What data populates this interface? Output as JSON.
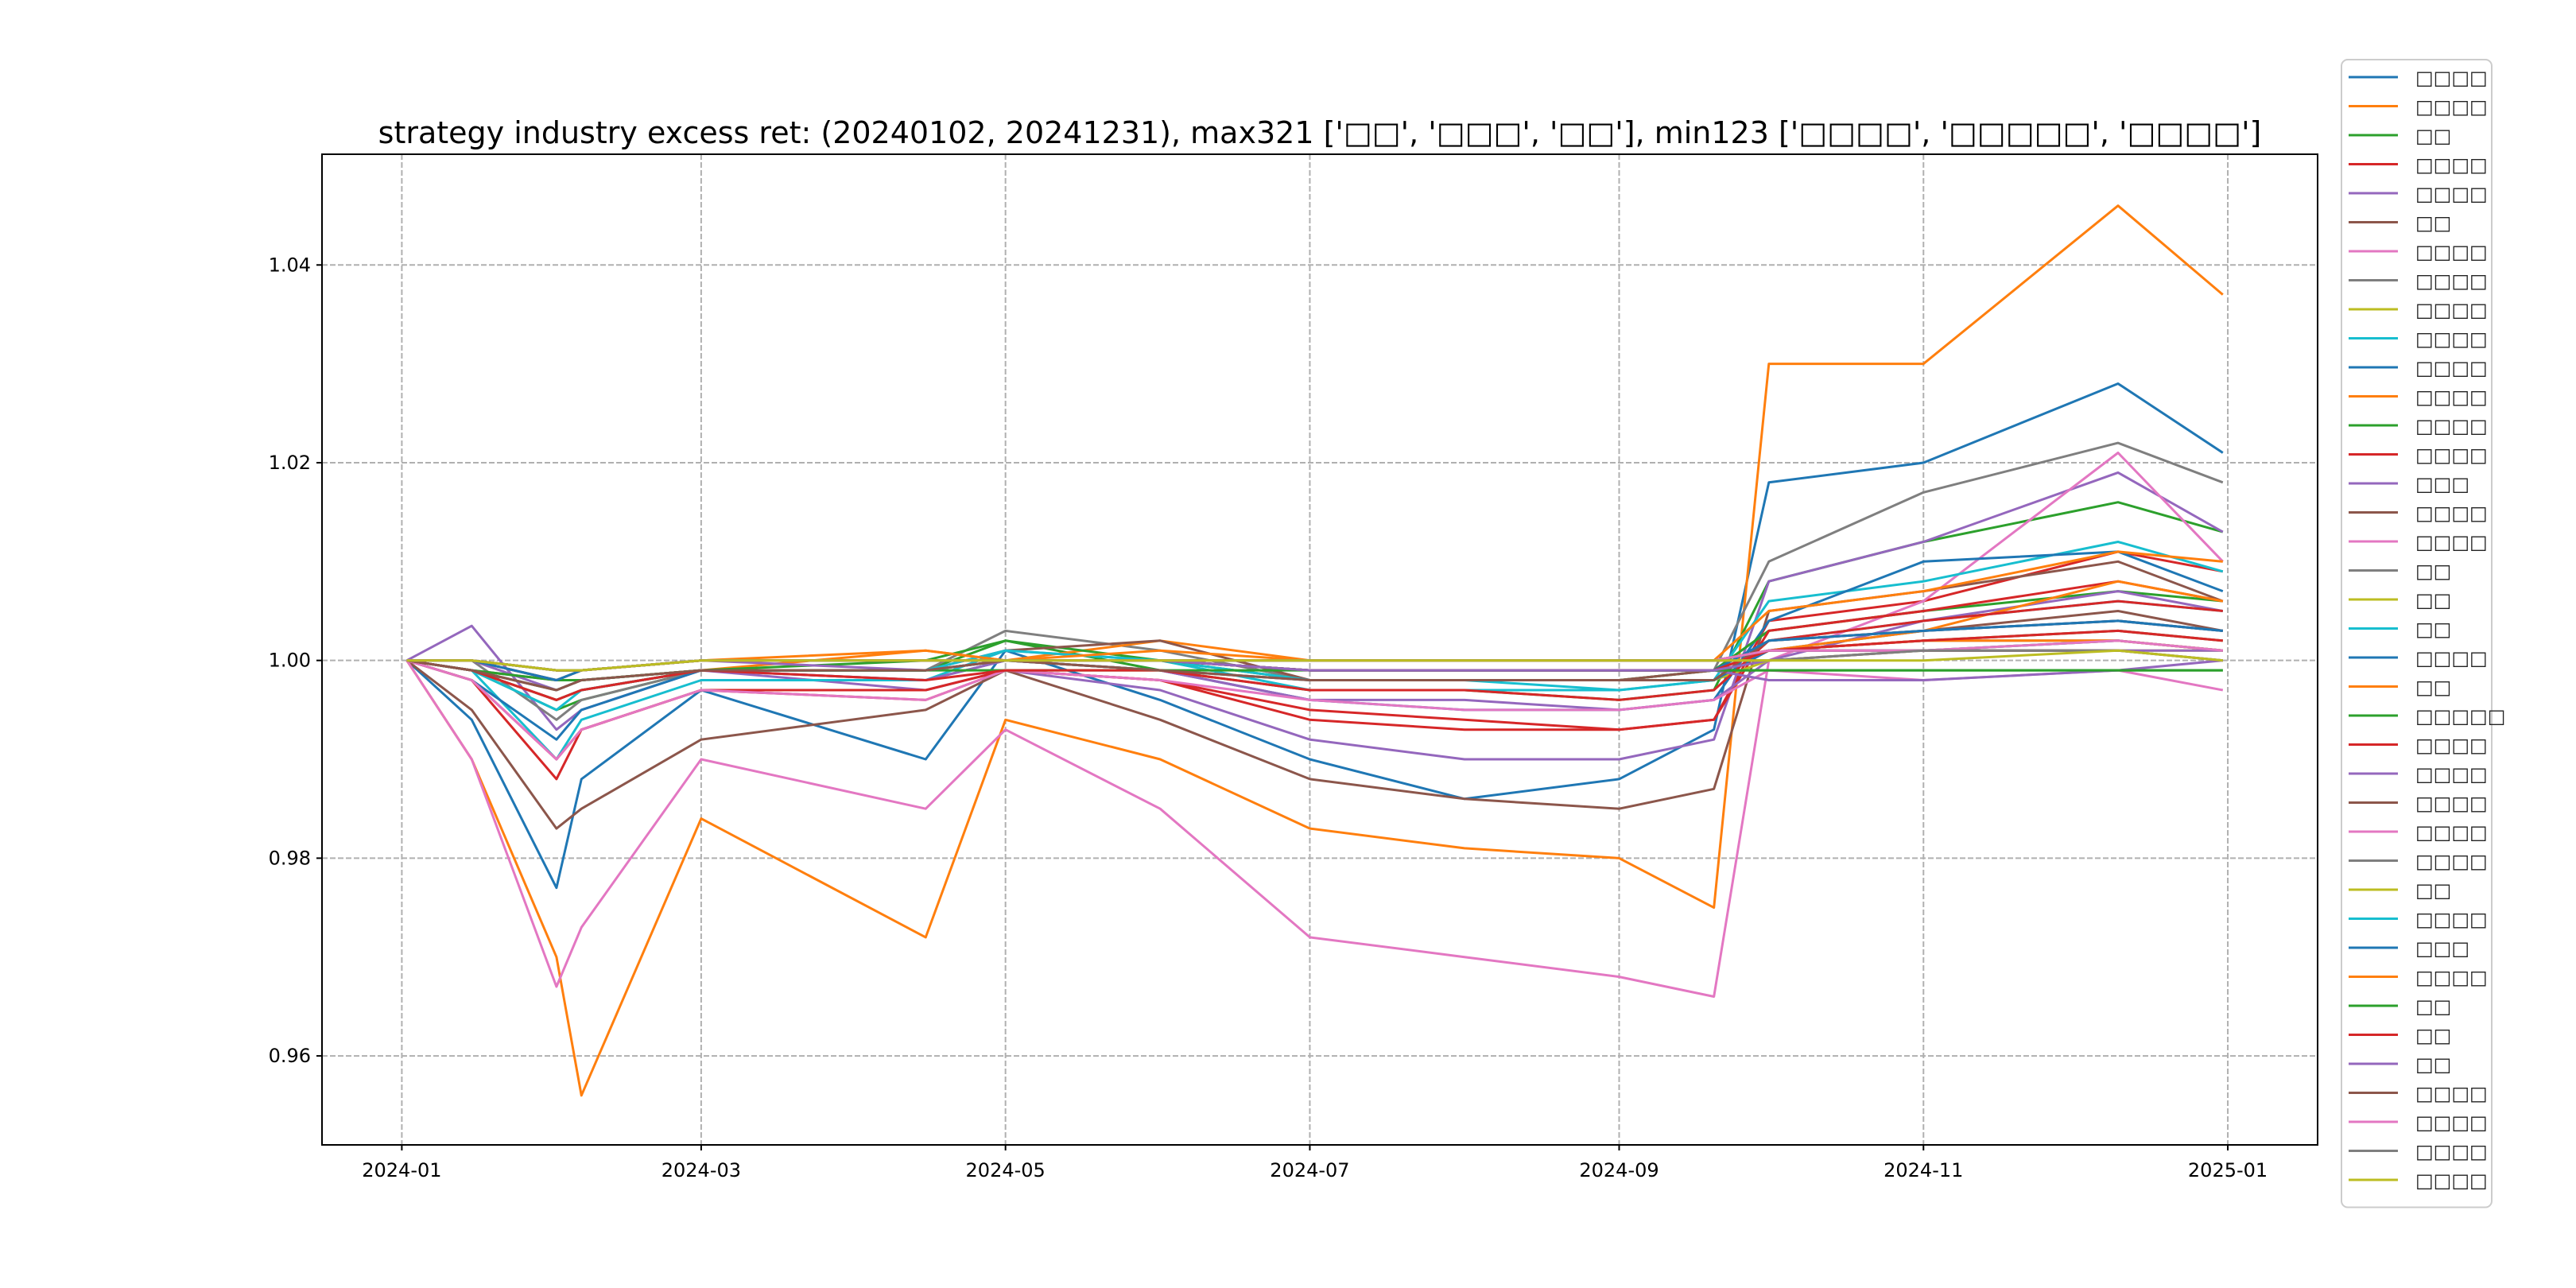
{
  "chart_data": {
    "type": "line",
    "title": "strategy industry excess ret: (20240102, 20241231), max321 ['□□', '□□□', '□□'], min123 ['□□□□', '□□□□□', '□□□□']",
    "xlabel": "",
    "ylabel": "",
    "xlim": [
      "2023-12-16",
      "2025-01-19"
    ],
    "ylim": [
      0.951,
      1.0512
    ],
    "grid": true,
    "legend_position": "upper-left",
    "x_ticks": [
      "2024-01",
      "2024-03",
      "2024-05",
      "2024-07",
      "2024-09",
      "2024-11",
      "2025-01"
    ],
    "y_ticks": [
      "0.96",
      "0.98",
      "1.00",
      "1.02",
      "1.04"
    ],
    "y_tick_values": [
      0.96,
      0.98,
      1.0,
      1.02,
      1.04
    ],
    "colors": [
      "#1f77b4",
      "#ff7f0e",
      "#2ca02c",
      "#d62728",
      "#9467bd",
      "#8c564b",
      "#e377c2",
      "#7f7f7f",
      "#bcbd22",
      "#17becf"
    ],
    "x": [
      "2024-01-02",
      "2024-01-15",
      "2024-02-01",
      "2024-02-06",
      "2024-03-01",
      "2024-04-15",
      "2024-05-01",
      "2024-06-01",
      "2024-07-01",
      "2024-08-01",
      "2024-09-01",
      "2024-09-20",
      "2024-10-01",
      "2024-11-01",
      "2024-12-10",
      "2024-12-31"
    ],
    "series": [
      {
        "name": "□□□□",
        "values": [
          1,
          0.994,
          0.977,
          0.988,
          0.997,
          0.99,
          1.001,
          0.996,
          0.99,
          0.986,
          0.988,
          0.993,
          1.018,
          1.02,
          1.028,
          1.021
        ]
      },
      {
        "name": "□□□□",
        "values": [
          1,
          0.99,
          0.97,
          0.956,
          0.984,
          0.972,
          0.994,
          0.99,
          0.983,
          0.981,
          0.98,
          0.975,
          1.03,
          1.03,
          1.046,
          1.037
        ]
      },
      {
        "name": "□□",
        "values": [
          1,
          0.999,
          0.995,
          0.996,
          0.999,
          0.999,
          1.002,
          0.999,
          0.997,
          0.997,
          0.996,
          0.997,
          1.008,
          1.012,
          1.016,
          1.013
        ]
      },
      {
        "name": "□□□□",
        "values": [
          1,
          0.998,
          0.988,
          0.993,
          0.997,
          0.996,
          0.999,
          0.998,
          0.994,
          0.993,
          0.993,
          0.994,
          1.004,
          1.006,
          1.011,
          1.009
        ]
      },
      {
        "name": "□□□□",
        "values": [
          1,
          1.0035,
          0.993,
          0.995,
          0.999,
          0.997,
          0.999,
          0.997,
          0.992,
          0.99,
          0.99,
          0.992,
          1.008,
          1.012,
          1.019,
          1.013
        ]
      },
      {
        "name": "□□",
        "values": [
          1,
          0.995,
          0.983,
          0.985,
          0.992,
          0.995,
          0.999,
          0.994,
          0.988,
          0.986,
          0.985,
          0.987,
          1.005,
          1.007,
          1.01,
          1.006
        ]
      },
      {
        "name": "□□□□",
        "values": [
          1,
          0.99,
          0.967,
          0.973,
          0.99,
          0.985,
          0.993,
          0.985,
          0.972,
          0.97,
          0.968,
          0.966,
          1.0,
          1.006,
          1.021,
          1.01
        ]
      },
      {
        "name": "□□□□",
        "values": [
          1,
          1.0,
          0.994,
          0.996,
          0.999,
          0.999,
          1.003,
          1.001,
          0.998,
          0.998,
          0.998,
          0.999,
          1.01,
          1.017,
          1.022,
          1.018
        ]
      },
      {
        "name": "□□□□",
        "values": [
          1,
          1,
          0.998,
          0.999,
          1,
          1,
          1,
          1,
          0.999,
          0.999,
          0.999,
          0.999,
          1.001,
          1.002,
          1.003,
          1.002
        ]
      },
      {
        "name": "□□□□",
        "values": [
          1,
          0.999,
          0.99,
          0.994,
          0.998,
          0.998,
          1.001,
          1.0,
          0.997,
          0.997,
          0.997,
          0.998,
          1.006,
          1.008,
          1.012,
          1.009
        ]
      },
      {
        "name": "□□□□",
        "values": [
          1,
          0.998,
          0.992,
          0.995,
          0.999,
          0.998,
          1.0,
          0.999,
          0.996,
          0.995,
          0.995,
          0.996,
          1.004,
          1.01,
          1.011,
          1.007
        ]
      },
      {
        "name": "□□□□",
        "values": [
          1,
          0.999,
          0.997,
          0.998,
          0.999,
          1.001,
          1.0,
          1.002,
          1.0,
          1.0,
          1.0,
          1.0,
          1.005,
          1.007,
          1.011,
          1.01
        ]
      },
      {
        "name": "□□□□",
        "values": [
          1,
          0.999,
          0.996,
          0.997,
          0.999,
          1.0,
          1.002,
          1.0,
          0.998,
          0.998,
          0.998,
          0.999,
          1.003,
          1.005,
          1.007,
          1.006
        ]
      },
      {
        "name": "□□□□",
        "values": [
          1,
          0.998,
          0.99,
          0.993,
          0.997,
          0.997,
          0.999,
          0.998,
          0.995,
          0.994,
          0.993,
          0.994,
          1.003,
          1.005,
          1.008,
          1.006
        ]
      },
      {
        "name": "□□□",
        "values": [
          1,
          1.0,
          0.997,
          0.998,
          0.999,
          0.998,
          1.0,
          0.999,
          0.996,
          0.996,
          0.995,
          0.996,
          1.0,
          1.004,
          1.007,
          1.005
        ]
      },
      {
        "name": "□□□□",
        "values": [
          1,
          0.999,
          0.996,
          0.997,
          0.999,
          0.999,
          1.001,
          1.002,
          0.998,
          0.998,
          0.998,
          0.999,
          1.002,
          1.003,
          1.005,
          1.003
        ]
      },
      {
        "name": "□□□□",
        "values": [
          1,
          0.998,
          0.99,
          0.993,
          0.997,
          0.996,
          0.999,
          0.998,
          0.996,
          0.995,
          0.995,
          0.996,
          0.999,
          0.998,
          0.999,
          0.997
        ]
      },
      {
        "name": "□□",
        "values": [
          1,
          0.999,
          0.998,
          0.998,
          0.999,
          0.999,
          1.0,
          1.0,
          0.999,
          0.999,
          0.999,
          0.999,
          1.001,
          1.002,
          1.002,
          1.001
        ]
      },
      {
        "name": "□□",
        "values": [
          1,
          0.999,
          0.997,
          0.998,
          0.999,
          0.999,
          1.0,
          0.999,
          0.998,
          0.998,
          0.998,
          0.998,
          1.0,
          1.001,
          1.002,
          1.001
        ]
      },
      {
        "name": "□□",
        "values": [
          1,
          0.999,
          0.995,
          0.997,
          0.999,
          0.999,
          1.001,
          1.0,
          0.998,
          0.998,
          0.997,
          0.998,
          1.002,
          1.004,
          1.006,
          1.005
        ]
      },
      {
        "name": "□□□□",
        "values": [
          1,
          0.999,
          0.997,
          0.998,
          0.999,
          0.999,
          1.0,
          0.999,
          0.998,
          0.998,
          0.998,
          0.998,
          1.001,
          1.003,
          1.004,
          1.003
        ]
      },
      {
        "name": "□□",
        "values": [
          1,
          1.0,
          0.998,
          0.999,
          1.0,
          1.001,
          1.0,
          1.001,
          1.0,
          1.0,
          1.0,
          1.0,
          1.001,
          1.003,
          1.008,
          1.006
        ]
      },
      {
        "name": "□□□□□",
        "values": [
          1,
          0.999,
          0.998,
          0.998,
          0.999,
          0.999,
          0.999,
          0.999,
          0.999,
          0.999,
          0.999,
          0.999,
          0.999,
          0.999,
          0.999,
          0.999
        ]
      },
      {
        "name": "□□□□",
        "values": [
          1,
          0.999,
          0.996,
          0.997,
          0.999,
          0.998,
          0.999,
          0.999,
          0.997,
          0.997,
          0.996,
          0.997,
          1.002,
          1.004,
          1.006,
          1.005
        ]
      },
      {
        "name": "□□□□",
        "values": [
          1,
          1.0,
          0.998,
          0.999,
          1.0,
          0.999,
          1.0,
          1.0,
          0.999,
          0.999,
          0.999,
          0.999,
          0.998,
          0.998,
          0.999,
          1.0
        ]
      },
      {
        "name": "□□□□",
        "values": [
          1,
          0.999,
          0.997,
          0.998,
          0.999,
          0.999,
          1.0,
          0.999,
          0.998,
          0.998,
          0.998,
          0.998,
          1.002,
          1.003,
          1.004,
          1.003
        ]
      },
      {
        "name": "□□□□",
        "values": [
          1,
          1.0,
          0.999,
          0.999,
          1.0,
          1.0,
          1.0,
          1.0,
          0.999,
          0.999,
          0.999,
          0.999,
          1.001,
          1.001,
          1.002,
          1.001
        ]
      },
      {
        "name": "□□□□",
        "values": [
          1,
          1.0,
          0.998,
          0.999,
          1.0,
          1.0,
          1.0,
          1.0,
          0.999,
          0.999,
          0.999,
          0.999,
          1.001,
          1.002,
          1.003,
          1.002
        ]
      },
      {
        "name": "□□",
        "values": [
          1,
          1.0,
          0.999,
          0.999,
          1.0,
          1.0,
          1.0,
          1.0,
          1.0,
          1.0,
          1.0,
          1.0,
          1.0,
          1.001,
          1.001,
          1.001
        ]
      },
      {
        "name": "□□□□",
        "values": [
          1,
          1.0,
          0.999,
          0.999,
          1.0,
          1.0,
          1.0,
          1.0,
          1.0,
          1.0,
          1.0,
          1.0,
          1.001,
          1.001,
          1.002,
          1.001
        ]
      },
      {
        "name": "□□□",
        "values": [
          1,
          1.0,
          0.998,
          0.999,
          1.0,
          1.0,
          1.0,
          1.0,
          0.999,
          0.999,
          0.999,
          0.999,
          1.002,
          1.003,
          1.004,
          1.003
        ]
      },
      {
        "name": "□□□□",
        "values": [
          1,
          1.0,
          0.999,
          0.999,
          1.0,
          1.0,
          1.0,
          1.0,
          1.0,
          1.0,
          1.0,
          1.0,
          1.001,
          1.002,
          1.002,
          1.001
        ]
      },
      {
        "name": "□□",
        "values": [
          1,
          1.0,
          0.999,
          0.999,
          1.0,
          1.0,
          1.0,
          1.0,
          0.999,
          0.999,
          0.999,
          0.999,
          0.999,
          0.999,
          0.999,
          0.999
        ]
      },
      {
        "name": "□□",
        "values": [
          1,
          1.0,
          0.999,
          0.999,
          1.0,
          1.0,
          1.0,
          1.0,
          0.999,
          0.999,
          0.999,
          0.999,
          1.001,
          1.002,
          1.003,
          1.002
        ]
      },
      {
        "name": "□□",
        "values": [
          1,
          1.0,
          0.999,
          0.999,
          1.0,
          1.0,
          1.0,
          1.0,
          0.999,
          0.999,
          0.999,
          0.999,
          1.0,
          1.001,
          1.001,
          1.001
        ]
      },
      {
        "name": "□□□□",
        "values": [
          1,
          1.0,
          0.999,
          0.999,
          1.0,
          1.0,
          1.0,
          1.0,
          1.0,
          1.0,
          1.0,
          1.0,
          1.001,
          1.001,
          1.001,
          1.0
        ]
      },
      {
        "name": "□□□□",
        "values": [
          1,
          1.0,
          0.999,
          0.999,
          1.0,
          1.0,
          1.0,
          1.0,
          1.0,
          1.0,
          1.0,
          1.0,
          1.001,
          1.001,
          1.002,
          1.001
        ]
      },
      {
        "name": "□□□□",
        "values": [
          1,
          1.0,
          0.999,
          0.999,
          1.0,
          1.0,
          1.0,
          1.0,
          1.0,
          1.0,
          1.0,
          1.0,
          1.0,
          1.001,
          1.001,
          1.0
        ]
      },
      {
        "name": "□□□□",
        "values": [
          1,
          1.0,
          0.999,
          0.999,
          1.0,
          1.0,
          1.0,
          1.0,
          1.0,
          1.0,
          1.0,
          1.0,
          1.0,
          1.0,
          1.001,
          1.0
        ]
      }
    ]
  }
}
